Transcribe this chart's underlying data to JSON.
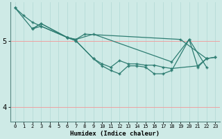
{
  "xlabel": "Humidex (Indice chaleur)",
  "ylabel": "",
  "background_color": "#ceeae6",
  "plot_bg_color": "#ceeae6",
  "line_color": "#2e7d72",
  "grid_color_v": "#b0d8d4",
  "grid_color_h": "#f0a0a0",
  "xlim": [
    -0.5,
    23.5
  ],
  "ylim": [
    3.78,
    5.58
  ],
  "yticks": [
    4,
    5
  ],
  "xticks": [
    0,
    1,
    2,
    3,
    4,
    5,
    6,
    7,
    8,
    9,
    10,
    11,
    12,
    13,
    14,
    15,
    16,
    17,
    18,
    19,
    20,
    21,
    22,
    23
  ],
  "series": [
    {
      "x": [
        0,
        1,
        2,
        3,
        6,
        7,
        8,
        19,
        22
      ],
      "y": [
        5.5,
        5.38,
        5.28,
        5.22,
        5.05,
        5.02,
        5.1,
        5.02,
        4.73
      ]
    },
    {
      "x": [
        0,
        2,
        3,
        6,
        7,
        9,
        10,
        11,
        12,
        13,
        14,
        15,
        16,
        17,
        18,
        21,
        22,
        23
      ],
      "y": [
        5.5,
        5.18,
        5.22,
        5.05,
        5.0,
        4.73,
        4.65,
        4.6,
        4.7,
        4.65,
        4.65,
        4.63,
        4.63,
        4.6,
        4.58,
        4.62,
        4.73,
        4.75
      ]
    },
    {
      "x": [
        2,
        3,
        6,
        7,
        9,
        18,
        20,
        22
      ],
      "y": [
        5.18,
        5.26,
        5.05,
        5.02,
        5.1,
        4.68,
        5.02,
        4.6
      ]
    },
    {
      "x": [
        2,
        3,
        6,
        7,
        9,
        10,
        11,
        12,
        13,
        14,
        15,
        16,
        17,
        18,
        20,
        21,
        22,
        23
      ],
      "y": [
        5.18,
        5.26,
        5.05,
        5.0,
        4.73,
        4.62,
        4.55,
        4.5,
        4.62,
        4.62,
        4.6,
        4.5,
        4.5,
        4.55,
        5.02,
        4.6,
        4.73,
        4.75
      ]
    }
  ]
}
